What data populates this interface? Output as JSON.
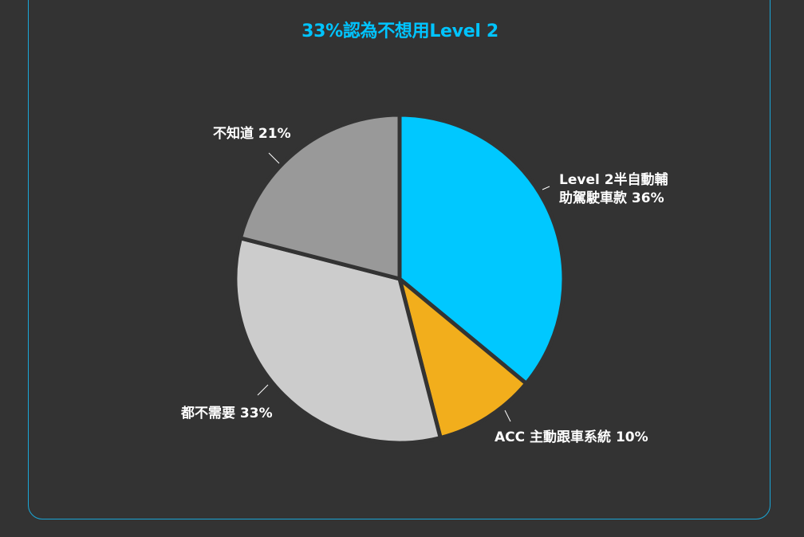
{
  "chart_data": {
    "type": "pie",
    "title": "33%認為不想用Level 2",
    "slices": [
      {
        "label_lines": [
          "Level 2半自動輔",
          "助駕駛車款 36%"
        ],
        "value": 36,
        "color": "#00c8ff"
      },
      {
        "label_lines": [
          "ACC 主動跟車系統 10%"
        ],
        "value": 10,
        "color": "#f2ae1c"
      },
      {
        "label_lines": [
          "都不需要 33%"
        ],
        "value": 33,
        "color": "#cccccc"
      },
      {
        "label_lines": [
          "不知道 21%"
        ],
        "value": 21,
        "color": "#999999"
      }
    ],
    "start": "12 o'clock",
    "direction": "clockwise",
    "legend": "none"
  },
  "colors": {
    "background": "#333333",
    "frame_border": "#1aa6d6",
    "title": "#00c4ff",
    "label_text": "#ffffff",
    "slice_separator": "#333333"
  }
}
